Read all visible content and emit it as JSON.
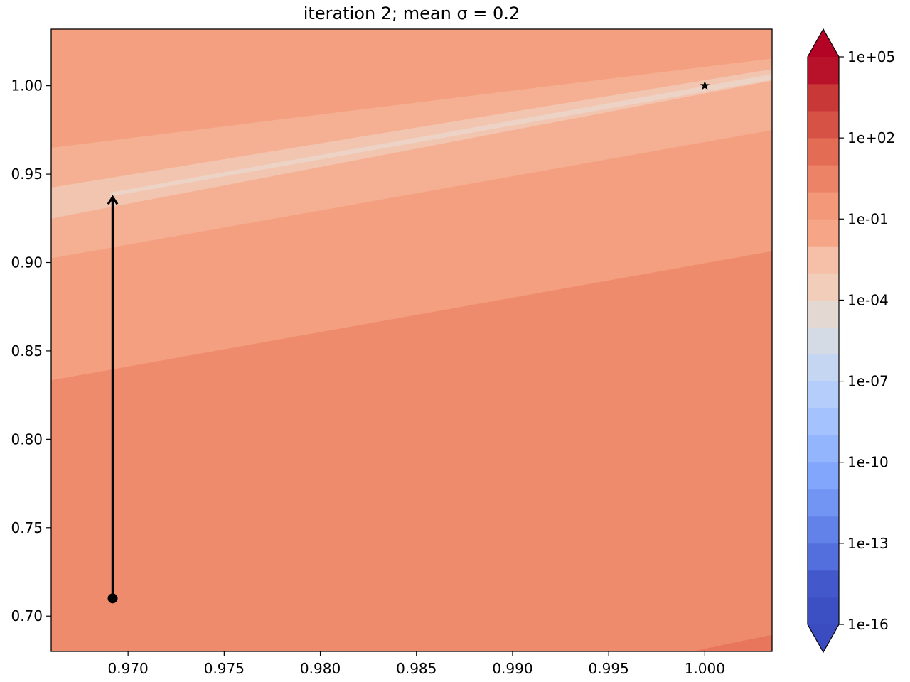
{
  "chart_data": {
    "type": "contour",
    "title": "iteration 2; mean σ = 0.2",
    "xlabel": "",
    "ylabel": "",
    "xlim": [
      0.966,
      1.0035
    ],
    "ylim": [
      0.68,
      1.032
    ],
    "xticks": [
      0.97,
      0.975,
      0.98,
      0.985,
      0.99,
      0.995,
      1.0
    ],
    "xtick_labels": [
      "0.970",
      "0.975",
      "0.980",
      "0.985",
      "0.990",
      "0.995",
      "1.000"
    ],
    "yticks": [
      0.7,
      0.75,
      0.8,
      0.85,
      0.9,
      0.95,
      1.0
    ],
    "ytick_labels": [
      "0.70",
      "0.75",
      "0.80",
      "0.85",
      "0.90",
      "0.95",
      "1.00"
    ],
    "grid": false,
    "contour_bands": [
      {
        "color": "#e8765c",
        "polygon": [
          [
            0.9992,
            0.68
          ],
          [
            1.0035,
            0.68
          ],
          [
            1.0035,
            0.6895
          ],
          [
            0.9992,
            0.6795
          ]
        ]
      },
      {
        "color": "#ef8b6d",
        "polygon": [
          [
            0.966,
            0.68
          ],
          [
            0.9992,
            0.68
          ],
          [
            1.0035,
            0.6895
          ],
          [
            1.0035,
            0.9065
          ],
          [
            0.966,
            0.8335
          ]
        ]
      },
      {
        "color": "#f49f7f",
        "polygon": [
          [
            0.966,
            0.8335
          ],
          [
            1.0035,
            0.9065
          ],
          [
            1.0035,
            0.975
          ],
          [
            0.966,
            0.9025
          ]
        ]
      },
      {
        "color": "#f5b093",
        "polygon": [
          [
            0.966,
            0.9025
          ],
          [
            1.0035,
            0.975
          ],
          [
            1.0035,
            1.003
          ],
          [
            0.966,
            0.925
          ]
        ]
      },
      {
        "color": "#f2c5b0",
        "polygon": [
          [
            0.966,
            0.925
          ],
          [
            1.0035,
            1.003
          ],
          [
            1.0035,
            1.0095
          ],
          [
            0.966,
            0.9425
          ]
        ]
      },
      {
        "color": "#f5b093",
        "polygon": [
          [
            0.966,
            0.9425
          ],
          [
            1.0035,
            1.0095
          ],
          [
            1.0035,
            1.0155
          ],
          [
            0.966,
            0.965
          ]
        ]
      },
      {
        "color": "#f49f7f",
        "polygon": [
          [
            0.966,
            0.965
          ],
          [
            1.0035,
            1.0155
          ],
          [
            1.0035,
            1.032
          ],
          [
            0.966,
            1.032
          ]
        ]
      },
      {
        "color": "#ecd3c5",
        "polygon": [
          [
            0.9691,
            0.9375
          ],
          [
            1.0035,
            1.0035
          ],
          [
            1.0035,
            1.0065
          ],
          [
            0.9691,
            0.9395
          ]
        ]
      }
    ],
    "path": {
      "start": [
        0.9692,
        0.71
      ],
      "end": [
        0.9692,
        0.937
      ]
    },
    "target": [
      1.0,
      1.0
    ],
    "colorbar": {
      "scale": "log",
      "min_exponent": -16,
      "max_exponent": 5,
      "extend": "both",
      "tick_labels": [
        "1e-16",
        "1e-13",
        "1e-10",
        "1e-07",
        "1e-04",
        "1e-01",
        "1e+02",
        "1e+05"
      ],
      "extend_low_color": "#3b4cc0",
      "extend_high_color": "#b40426",
      "bands": [
        "#3d50c3",
        "#4358cb",
        "#536edd",
        "#6282ea",
        "#7295f4",
        "#82a6fb",
        "#93b5fe",
        "#a3c2fe",
        "#b5cdfa",
        "#c5d6f2",
        "#d5dbe5",
        "#e4d9d2",
        "#f1cdba",
        "#f5c0a7",
        "#f6a586",
        "#f4987a",
        "#ed8366",
        "#e36c55",
        "#d65244",
        "#c83836",
        "#b8122a"
      ]
    }
  }
}
